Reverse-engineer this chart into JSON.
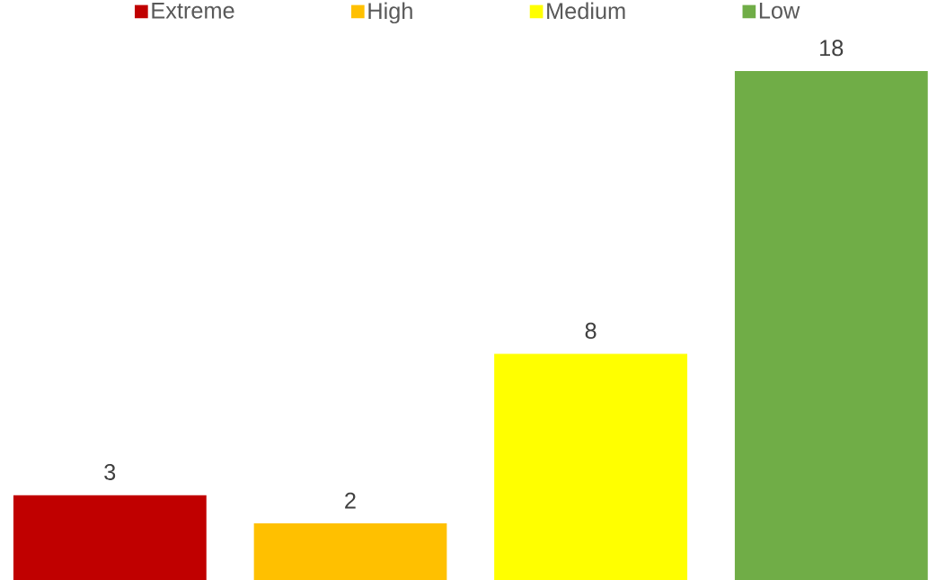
{
  "chart_data": {
    "type": "bar",
    "categories": [
      null
    ],
    "series": [
      {
        "name": "Extreme",
        "color": "#c00000",
        "values": [
          3
        ]
      },
      {
        "name": "High",
        "color": "#ffc000",
        "values": [
          2
        ]
      },
      {
        "name": "Medium",
        "color": "#ffff00",
        "values": [
          8
        ]
      },
      {
        "name": "Low",
        "color": "#70ad47",
        "values": [
          18
        ]
      }
    ],
    "data_labels": true,
    "legend": "top"
  }
}
